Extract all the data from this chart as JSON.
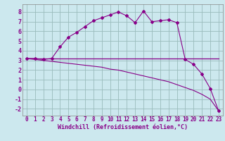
{
  "xlabel": "Windchill (Refroidissement éolien,°C)",
  "bg_color": "#cce8ee",
  "line_color": "#880088",
  "grid_color": "#99bbbb",
  "x_data": [
    0,
    1,
    2,
    3,
    4,
    5,
    6,
    7,
    8,
    9,
    10,
    11,
    12,
    13,
    14,
    15,
    16,
    17,
    18,
    19,
    20,
    21,
    22,
    23
  ],
  "y_curve": [
    3.2,
    3.2,
    3.1,
    3.2,
    4.4,
    5.4,
    5.9,
    6.5,
    7.1,
    7.4,
    7.7,
    8.0,
    7.6,
    6.9,
    8.1,
    7.0,
    7.1,
    7.2,
    6.9,
    3.1,
    2.6,
    1.6,
    0.1,
    -2.2
  ],
  "y_flat": [
    3.2,
    3.2,
    3.2,
    3.2,
    3.2,
    3.2,
    3.2,
    3.2,
    3.2,
    3.2,
    3.2,
    3.2,
    3.2,
    3.2,
    3.2,
    3.2,
    3.2,
    3.2,
    3.2,
    3.2,
    3.2,
    3.2,
    3.2,
    3.2
  ],
  "y_diagonal": [
    3.2,
    3.1,
    3.0,
    2.9,
    2.8,
    2.7,
    2.6,
    2.5,
    2.4,
    2.3,
    2.1,
    2.0,
    1.8,
    1.6,
    1.4,
    1.2,
    1.0,
    0.8,
    0.5,
    0.2,
    -0.1,
    -0.5,
    -1.0,
    -2.2
  ],
  "ylim": [
    -2.7,
    8.8
  ],
  "xlim": [
    -0.5,
    23.5
  ],
  "yticks": [
    -2,
    -1,
    0,
    1,
    2,
    3,
    4,
    5,
    6,
    7,
    8
  ],
  "xticks": [
    0,
    1,
    2,
    3,
    4,
    5,
    6,
    7,
    8,
    9,
    10,
    11,
    12,
    13,
    14,
    15,
    16,
    17,
    18,
    19,
    20,
    21,
    22,
    23
  ],
  "tick_labelsize": 5.5,
  "xlabel_fontsize": 6.0
}
